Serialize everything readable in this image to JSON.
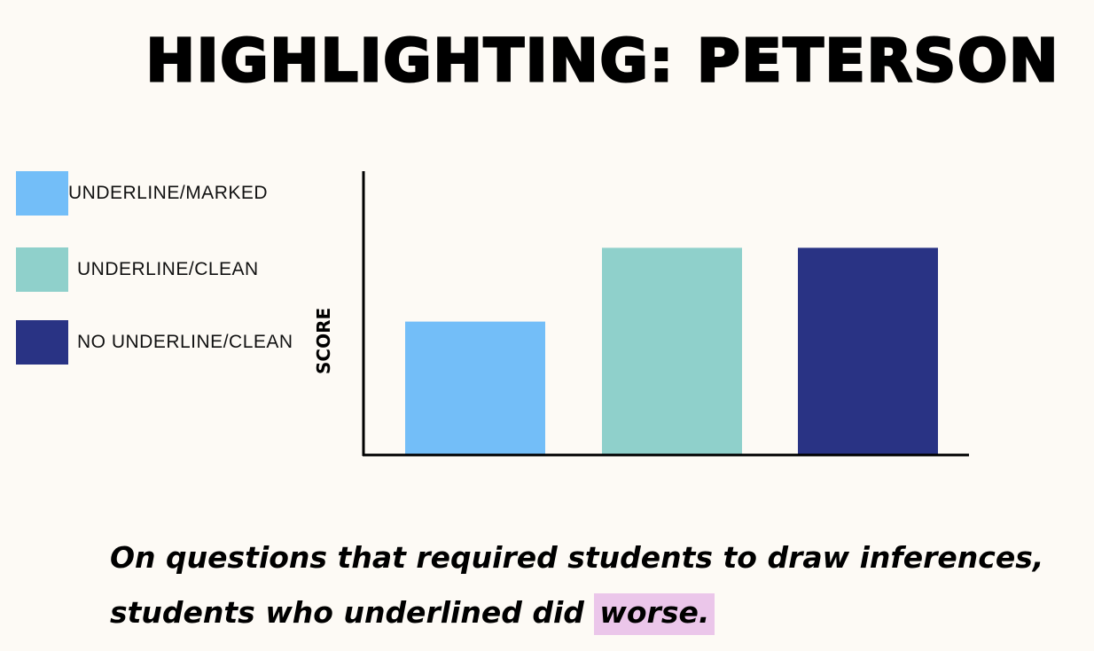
{
  "chart_data": {
    "type": "bar",
    "title": "HIGHLIGHTING: PETERSON",
    "xlabel": "",
    "ylabel": "SCORE",
    "categories": [
      "UNDERLINE/MARKED",
      "UNDERLINE/CLEAN",
      "NO UNDERLINE/CLEAN"
    ],
    "values": [
      0.47,
      0.73,
      0.73
    ],
    "ylim": [
      0,
      1
    ],
    "colors": [
      "#73bef8",
      "#8fd0cb",
      "#293384"
    ],
    "grid": false,
    "legend": "left",
    "tick_labels_shown": false
  },
  "caption": {
    "line1": "On questions that required students to draw inferences,",
    "line2_prefix": "students who underlined did",
    "line2_highlight": "worse.",
    "highlight_color": "#ebc6ea"
  }
}
